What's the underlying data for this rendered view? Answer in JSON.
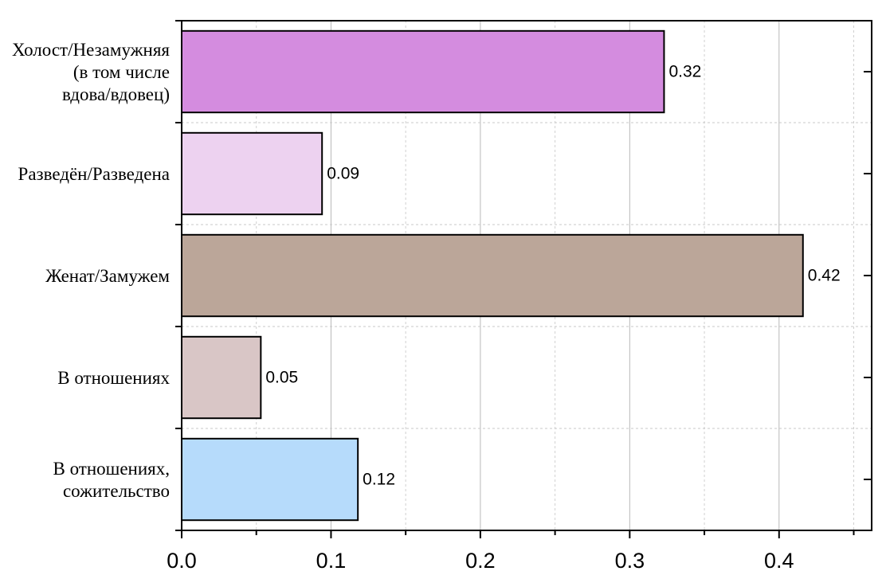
{
  "chart_data": {
    "type": "bar",
    "orientation": "horizontal",
    "categories": [
      [
        "Холост/Незамужняя",
        "(в том числе",
        "вдова/вдовец)"
      ],
      [
        "Разведён/Разведена"
      ],
      [
        "Женат/Замужем"
      ],
      [
        "В отношениях"
      ],
      [
        "В отношениях,",
        "сожительство"
      ]
    ],
    "values": [
      0.323,
      0.094,
      0.416,
      0.053,
      0.118
    ],
    "value_labels": [
      "0.32",
      "0.09",
      "0.42",
      "0.05",
      "0.12"
    ],
    "bar_colors": [
      "#D48CDF",
      "#EDD2F0",
      "#BBA699",
      "#D9C6C6",
      "#B6DBFB"
    ],
    "x_ticks": [
      "0.0",
      "0.1",
      "0.2",
      "0.3",
      "0.4"
    ],
    "x_tick_values": [
      0.0,
      0.1,
      0.2,
      0.3,
      0.4
    ],
    "xlim": [
      0,
      0.462
    ],
    "grid": true,
    "title": "",
    "xlabel": "",
    "ylabel": ""
  }
}
